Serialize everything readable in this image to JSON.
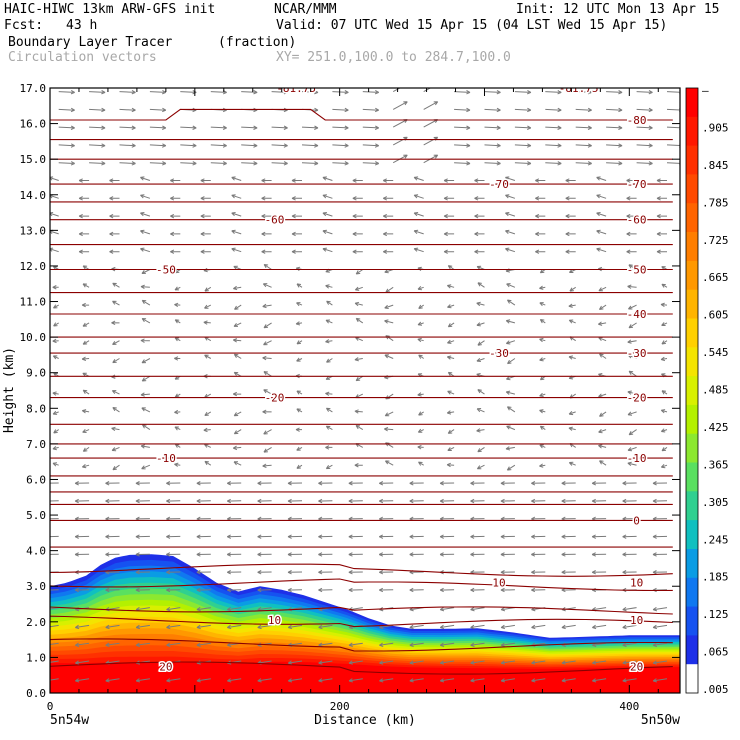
{
  "header": {
    "model": "HAIC-HIWC 13km ARW-GFS init",
    "org": "NCAR/MMM",
    "init": "Init: 12 UTC Mon 13 Apr 15",
    "fcst_label": "Fcst:",
    "fcst_value": "43 h",
    "valid": "Valid: 07 UTC Wed 15 Apr 15 (04 LST Wed 15 Apr 15)",
    "field": "Boundary Layer Tracer",
    "units": "(fraction)",
    "vectors": "Circulation vectors",
    "xy": "XY= 251.0,100.0 to 284.7,100.0"
  },
  "chart_data": {
    "type": "heatmap",
    "xlabel": "Distance (km)",
    "ylabel": "Height (km)",
    "xlim": [
      0,
      435
    ],
    "ylim": [
      0,
      17
    ],
    "x_ticks": [
      "0",
      "200",
      "400"
    ],
    "y_ticks": [
      "0.0",
      "1.0",
      "2.0",
      "3.0",
      "4.0",
      "5.0",
      "6.0",
      "7.0",
      "8.0",
      "9.0",
      "10.0",
      "11.0",
      "12.0",
      "13.0",
      "14.0",
      "15.0",
      "16.0",
      "17.0"
    ],
    "x_end_labels": {
      "left": "5n54w",
      "right": "5n50w"
    },
    "colorbar": {
      "labels": [
        "–",
        ".905",
        ".845",
        ".785",
        ".725",
        ".665",
        ".605",
        ".545",
        ".485",
        ".425",
        ".365",
        ".305",
        ".245",
        ".185",
        ".125",
        ".065",
        ".005"
      ],
      "colors": [
        "#ff0000",
        "#ff1800",
        "#ff3000",
        "#ff4a00",
        "#ff6400",
        "#ff7e00",
        "#ff9800",
        "#ffb400",
        "#ffd000",
        "#f4e400",
        "#d8f000",
        "#b4f000",
        "#8ce830",
        "#5ae060",
        "#30d090",
        "#10c0c0",
        "#0a9ce4",
        "#1078f0",
        "#1652f0",
        "#1e30e8",
        "#ffffff"
      ]
    },
    "isotherms": [
      {
        "label": "20",
        "y": 0.75
      },
      {
        "label": "10",
        "y": 2.05
      },
      {
        "label": "10",
        "y": 3.1
      },
      {
        "label": "0",
        "y": 4.85
      },
      {
        "label": "-10",
        "y": 6.6
      },
      {
        "label": "-20",
        "y": 8.3
      },
      {
        "label": "-30",
        "y": 9.55
      },
      {
        "label": "-40",
        "y": 10.65
      },
      {
        "label": "-50",
        "y": 11.9
      },
      {
        "label": "-60",
        "y": 13.3
      },
      {
        "label": "-70",
        "y": 14.3
      },
      {
        "label": "-80",
        "y": 16.1
      },
      {
        "label": "-81.75",
        "y": 17.0
      }
    ]
  }
}
